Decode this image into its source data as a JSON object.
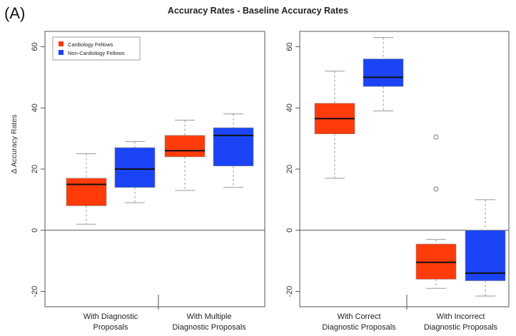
{
  "figure": {
    "panel_label": "(A)",
    "title": "Accuracy Rates - Baseline Accuracy Rates"
  },
  "colors": {
    "cardiology": "#ff3b0a",
    "non_cardiology": "#1a44f5",
    "axis": "#555555",
    "whisker": "#999999"
  },
  "chart_data": [
    {
      "type": "box",
      "panel": "left",
      "ylabel": "Δ Accuracy Rates",
      "ylim": [
        -25,
        65
      ],
      "yticks": [
        -20,
        0,
        20,
        40,
        60
      ],
      "zero_line": true,
      "groups": [
        {
          "label_lines": [
            "With Diagnostic",
            "Proposals"
          ]
        },
        {
          "label_lines": [
            "With Multiple",
            "Diagnostic Proposals"
          ]
        }
      ],
      "legend": {
        "placement": "top-left",
        "entries": [
          {
            "label": "Cardiology Fellows",
            "series": "cardiology"
          },
          {
            "label": "Non-Cardiology Fellows",
            "series": "non_cardiology"
          }
        ]
      },
      "boxes": [
        {
          "group": 0,
          "series": "cardiology",
          "min": 2,
          "q1": 8,
          "median": 15,
          "q3": 17,
          "max": 25,
          "outliers": []
        },
        {
          "group": 0,
          "series": "non_cardiology",
          "min": 9,
          "q1": 14,
          "median": 20,
          "q3": 27,
          "max": 29,
          "outliers": []
        },
        {
          "group": 1,
          "series": "cardiology",
          "min": 13,
          "q1": 24,
          "median": 26,
          "q3": 31,
          "max": 36,
          "outliers": []
        },
        {
          "group": 1,
          "series": "non_cardiology",
          "min": 14,
          "q1": 21,
          "median": 31,
          "q3": 33.5,
          "max": 38,
          "outliers": []
        }
      ]
    },
    {
      "type": "box",
      "panel": "right",
      "ylabel": "",
      "ylim": [
        -25,
        65
      ],
      "yticks": [
        -20,
        0,
        20,
        40,
        60
      ],
      "zero_line": true,
      "groups": [
        {
          "label_lines": [
            "With Correct",
            "Diagnostic Proposals"
          ]
        },
        {
          "label_lines": [
            "With Incorrect",
            "Diagnostic Proposals"
          ]
        }
      ],
      "boxes": [
        {
          "group": 0,
          "series": "cardiology",
          "min": 17,
          "q1": 31.5,
          "median": 36.5,
          "q3": 41.5,
          "max": 52,
          "outliers": []
        },
        {
          "group": 0,
          "series": "non_cardiology",
          "min": 39,
          "q1": 47,
          "median": 50,
          "q3": 56,
          "max": 63,
          "outliers": []
        },
        {
          "group": 1,
          "series": "cardiology",
          "min": -19,
          "q1": -16,
          "median": -10.5,
          "q3": -4.5,
          "max": -3,
          "outliers": [
            13.5,
            30.5
          ]
        },
        {
          "group": 1,
          "series": "non_cardiology",
          "min": -21.5,
          "q1": -16.5,
          "median": -14,
          "q3": 0,
          "max": 10,
          "outliers": []
        }
      ]
    }
  ]
}
